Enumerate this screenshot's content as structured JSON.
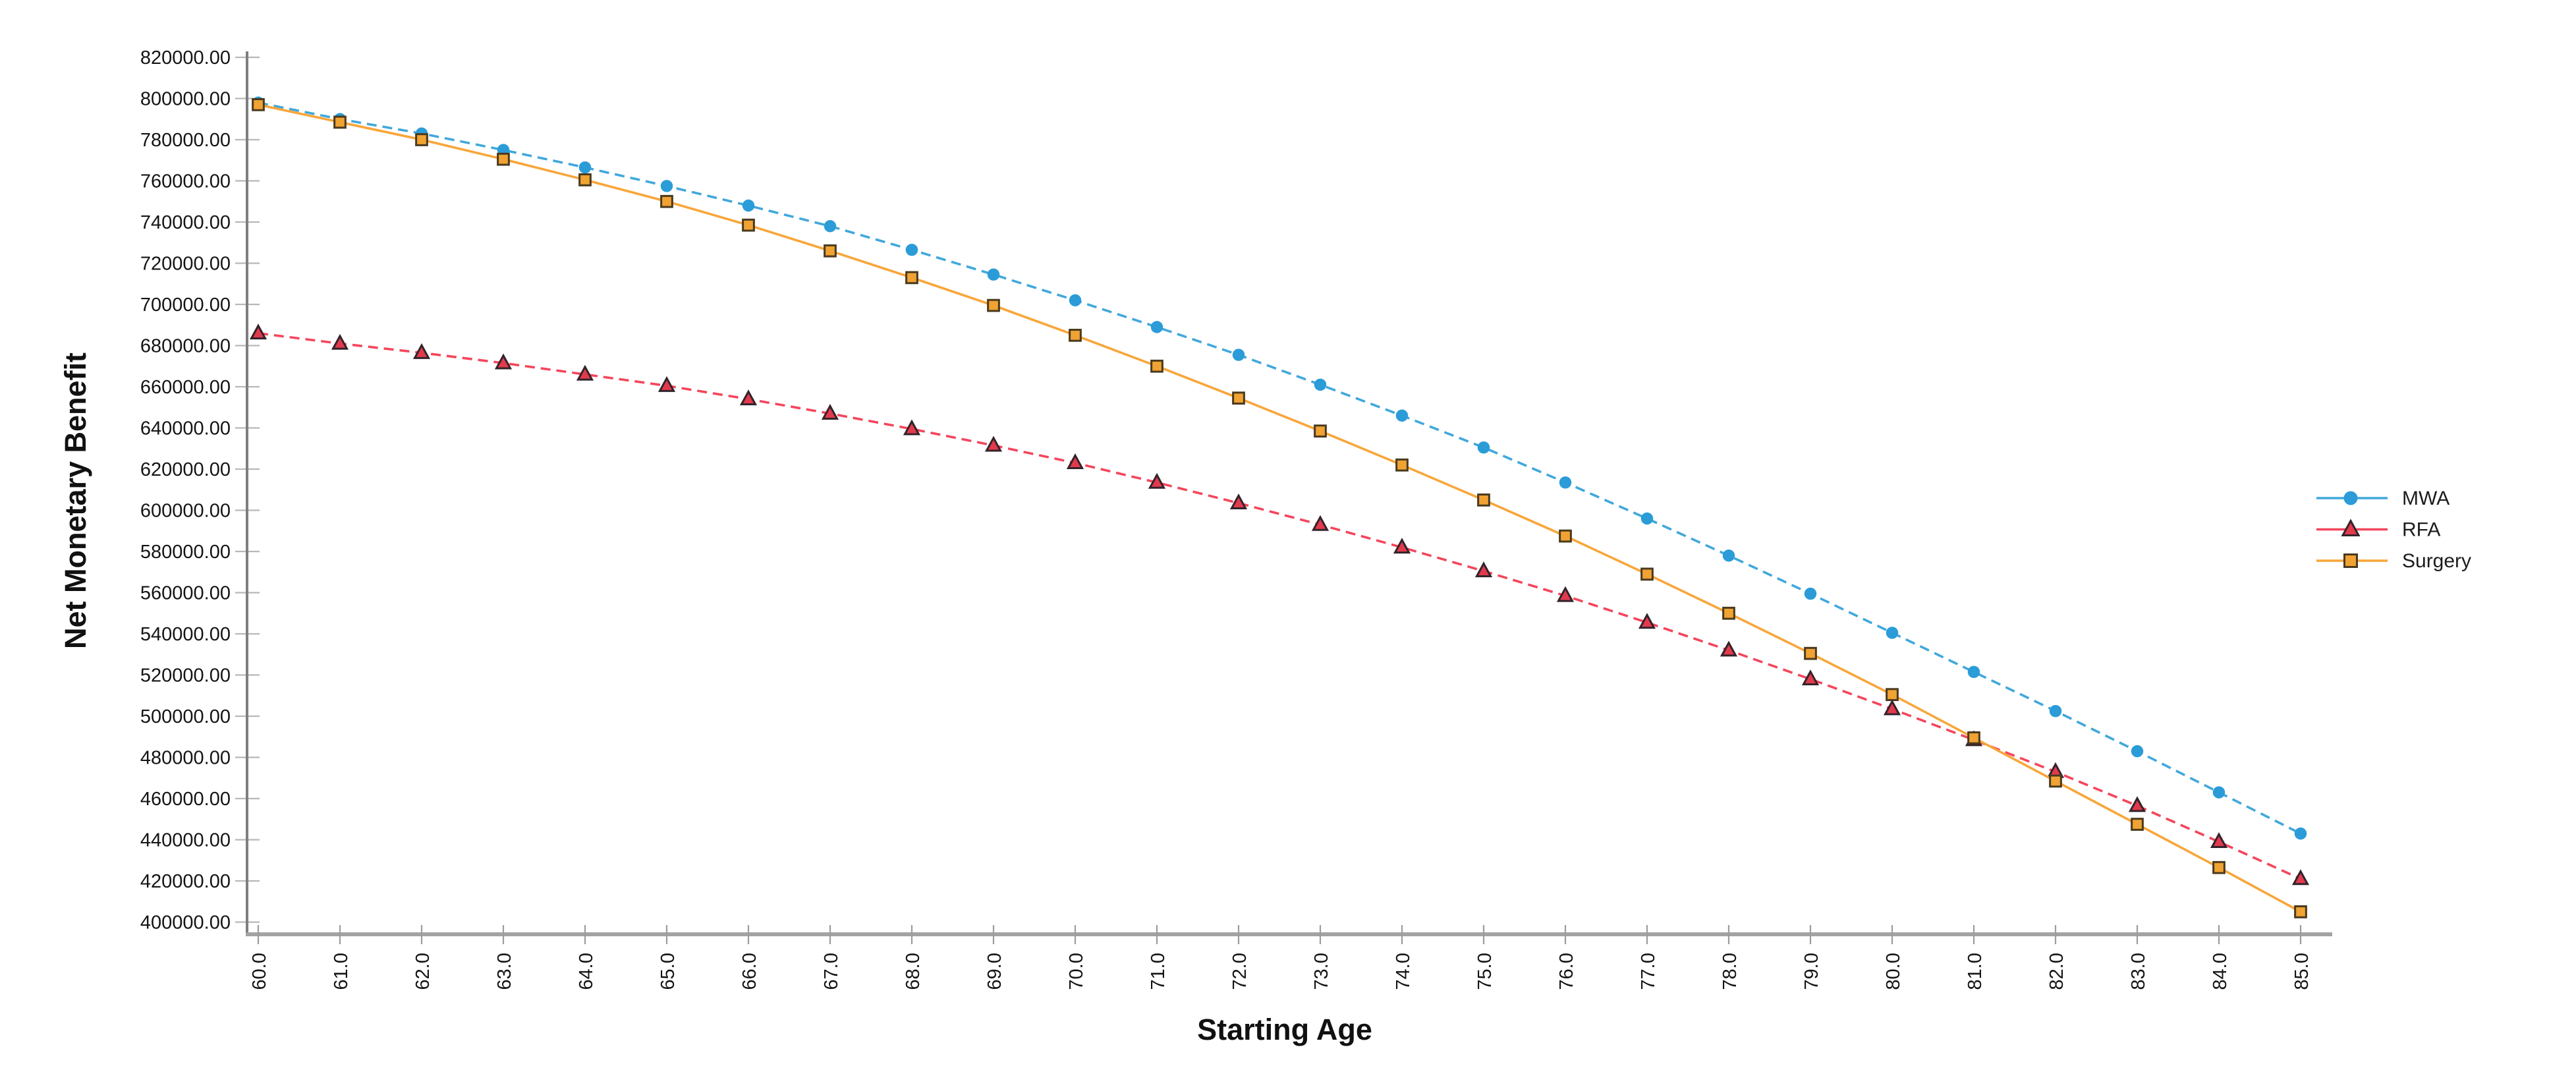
{
  "chart_data": {
    "type": "line",
    "title": "",
    "xlabel": "Starting Age",
    "ylabel": "Net Monetary Benefit",
    "grid": "off",
    "legend_position": "right",
    "x": [
      60,
      61,
      62,
      63,
      64,
      65,
      66,
      67,
      68,
      69,
      70,
      71,
      72,
      73,
      74,
      75,
      76,
      77,
      78,
      79,
      80,
      81,
      82,
      83,
      84,
      85
    ],
    "x_tick_labels": [
      "60.0",
      "61.0",
      "62.0",
      "63.0",
      "64.0",
      "65.0",
      "66.0",
      "67.0",
      "68.0",
      "69.0",
      "70.0",
      "71.0",
      "72.0",
      "73.0",
      "74.0",
      "75.0",
      "76.0",
      "77.0",
      "78.0",
      "79.0",
      "80.0",
      "81.0",
      "82.0",
      "83.0",
      "84.0",
      "85.0"
    ],
    "y_ticks": [
      820000,
      800000,
      780000,
      760000,
      740000,
      720000,
      700000,
      680000,
      660000,
      640000,
      620000,
      600000,
      580000,
      560000,
      540000,
      520000,
      500000,
      480000,
      460000,
      440000,
      420000,
      400000
    ],
    "y_tick_labels": [
      "820000.00",
      "800000.00",
      "780000.00",
      "760000.00",
      "740000.00",
      "720000.00",
      "700000.00",
      "680000.00",
      "660000.00",
      "640000.00",
      "620000.00",
      "600000.00",
      "580000.00",
      "560000.00",
      "540000.00",
      "520000.00",
      "500000.00",
      "480000.00",
      "460000.00",
      "440000.00",
      "420000.00",
      "400000.00"
    ],
    "ylim": [
      400000,
      820000
    ],
    "series": [
      {
        "name": "MWA",
        "marker": "circle",
        "line_style": "dashed",
        "line_color": "#41A8DB",
        "marker_color": "#2B9CD8",
        "marker_edge": "#2B9CD8",
        "values": [
          798000,
          790000,
          783000,
          775000,
          766500,
          757500,
          748000,
          738000,
          726500,
          714500,
          702000,
          689000,
          675500,
          661000,
          646000,
          630500,
          613500,
          596000,
          578000,
          559500,
          540500,
          521500,
          502500,
          483000,
          463000,
          443000
        ]
      },
      {
        "name": "RFA",
        "marker": "triangle",
        "line_style": "dashed",
        "line_color": "#F4465C",
        "marker_color": "#E23A4D",
        "marker_edge": "#33232B",
        "values": [
          686000,
          681000,
          676500,
          671500,
          666000,
          660500,
          654000,
          647000,
          639500,
          631500,
          623000,
          613500,
          603500,
          593000,
          582000,
          570500,
          558500,
          545500,
          532000,
          518000,
          503500,
          488500,
          473000,
          456500,
          439000,
          421000
        ]
      },
      {
        "name": "Surgery",
        "marker": "square",
        "line_style": "solid",
        "line_color": "#F8A63A",
        "marker_color": "#F0A233",
        "marker_edge": "#4A3A1E",
        "values": [
          797000,
          788500,
          780000,
          770500,
          760500,
          750000,
          738500,
          726000,
          713000,
          699500,
          685000,
          670000,
          654500,
          638500,
          622000,
          605000,
          587500,
          569000,
          550000,
          530500,
          510500,
          489500,
          468500,
          447500,
          426500,
          405000
        ]
      }
    ],
    "legend": [
      "MWA",
      "RFA",
      "Surgery"
    ],
    "colors": {
      "y_axis_line": "#7f7f7f",
      "x_axis_line": "#a3a3a3",
      "y_tick": "#b8b8b8",
      "x_tick": "#9c9c9c",
      "text": "#141414"
    }
  }
}
